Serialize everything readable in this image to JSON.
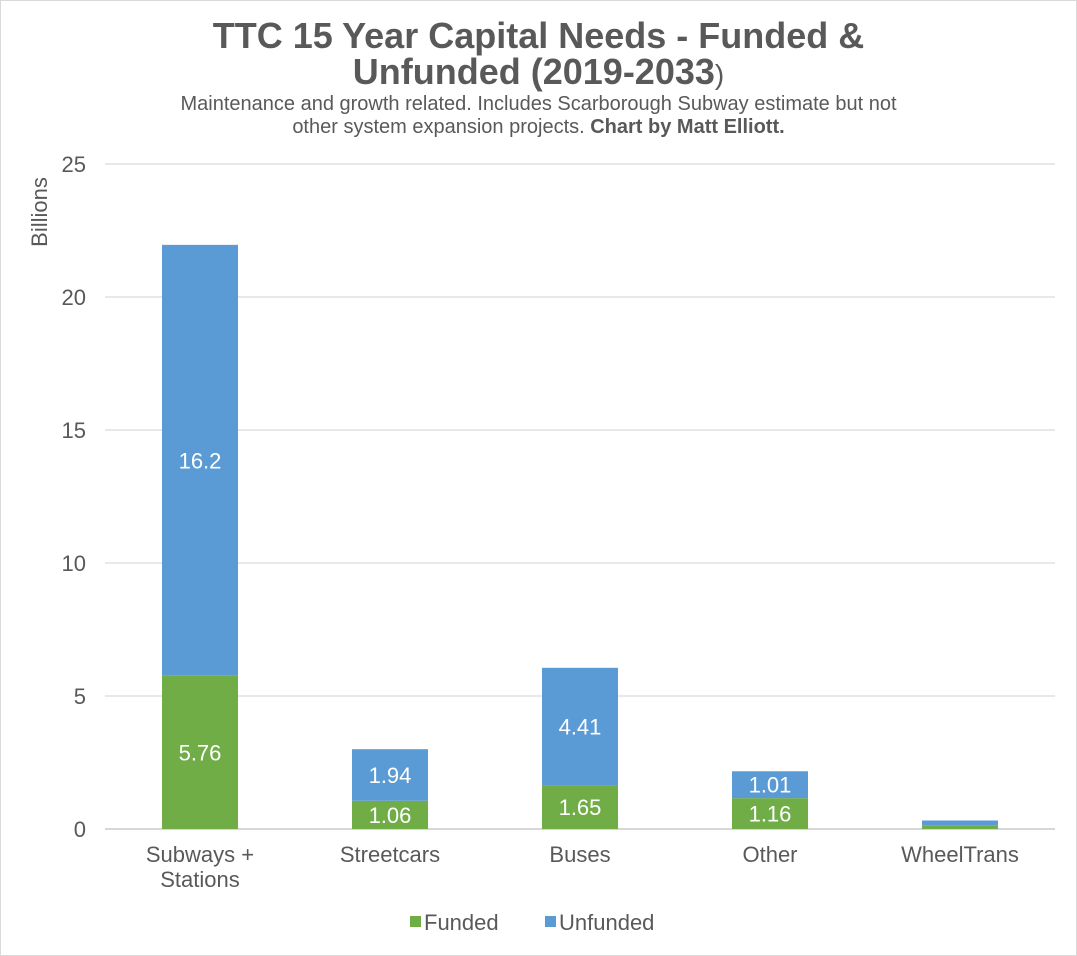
{
  "chart_data": {
    "type": "bar",
    "stacked": true,
    "title_line1": "TTC 15 Year Capital Needs - Funded &",
    "title_line2_main": "Unfunded (2019-2033",
    "title_line2_paren": ")",
    "subtitle_line1": "Maintenance and growth related. Includes Scarborough Subway estimate but not",
    "subtitle_line2_plain": "other system expansion projects. ",
    "subtitle_line2_bold": "Chart by Matt Elliott.",
    "ylabel": "Billions",
    "ylim": [
      0,
      25
    ],
    "yticks": [
      0,
      5,
      10,
      15,
      20,
      25
    ],
    "categories": [
      [
        "Subways +",
        "Stations"
      ],
      [
        "Streetcars"
      ],
      [
        "Buses"
      ],
      [
        "Other"
      ],
      [
        "WheelTrans"
      ]
    ],
    "series": [
      {
        "name": "Funded",
        "color": "#70ad47",
        "values": [
          5.76,
          1.06,
          1.65,
          1.16,
          0.12
        ],
        "labels": [
          "5.76",
          "1.06",
          "1.65",
          "1.16",
          ""
        ]
      },
      {
        "name": "Unfunded",
        "color": "#5b9bd5",
        "values": [
          16.2,
          1.94,
          4.41,
          1.01,
          0.2
        ],
        "labels": [
          "16.2",
          "1.94",
          "4.41",
          "1.01",
          ""
        ]
      }
    ],
    "legend_position": "bottom",
    "grid": true,
    "colors": {
      "grid": "#d9d9d9",
      "text": "#595959"
    }
  }
}
